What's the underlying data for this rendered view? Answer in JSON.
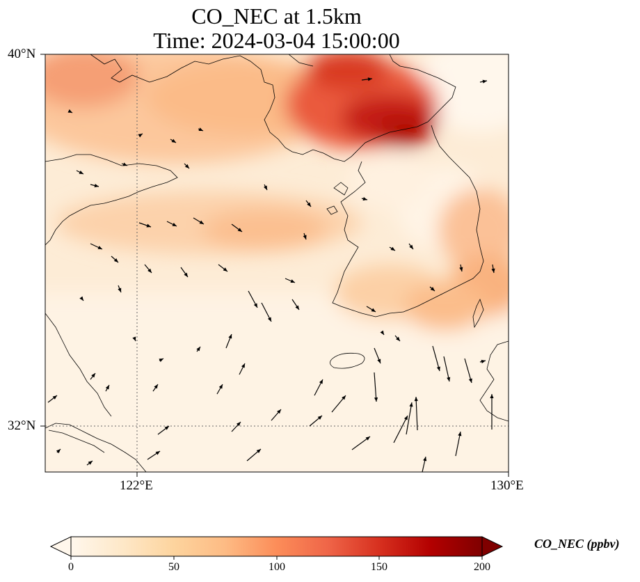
{
  "figure": {
    "title_line1": "CO_NEC at 1.5km",
    "title_line2": "Time: 2024-03-04 15:00:00"
  },
  "map": {
    "lon_range": [
      120,
      130
    ],
    "lat_range": [
      31,
      40
    ],
    "lat_ticks": [
      {
        "value": 40,
        "label": "40°N"
      },
      {
        "value": 32,
        "label": "32°N"
      }
    ],
    "lon_ticks": [
      {
        "value": 122,
        "label": "122°E"
      },
      {
        "value": 130,
        "label": "130°E"
      }
    ],
    "gridlines": true,
    "gridline_style": "dotted",
    "coastlines": true
  },
  "colorbar": {
    "label": "CO_NEC (ppbv)",
    "colormap": "OrRd",
    "range": [
      0,
      200
    ],
    "extend": "both",
    "ticks": [
      0,
      50,
      100,
      150,
      200
    ],
    "colors": [
      "#fff7ec",
      "#fee8c8",
      "#fdd49e",
      "#fdbb84",
      "#fc8d59",
      "#ef6548",
      "#d7301f",
      "#b30000",
      "#7f0000"
    ]
  },
  "wind_field": {
    "description_visible": "wind vectors overlaid as black arrows"
  }
}
